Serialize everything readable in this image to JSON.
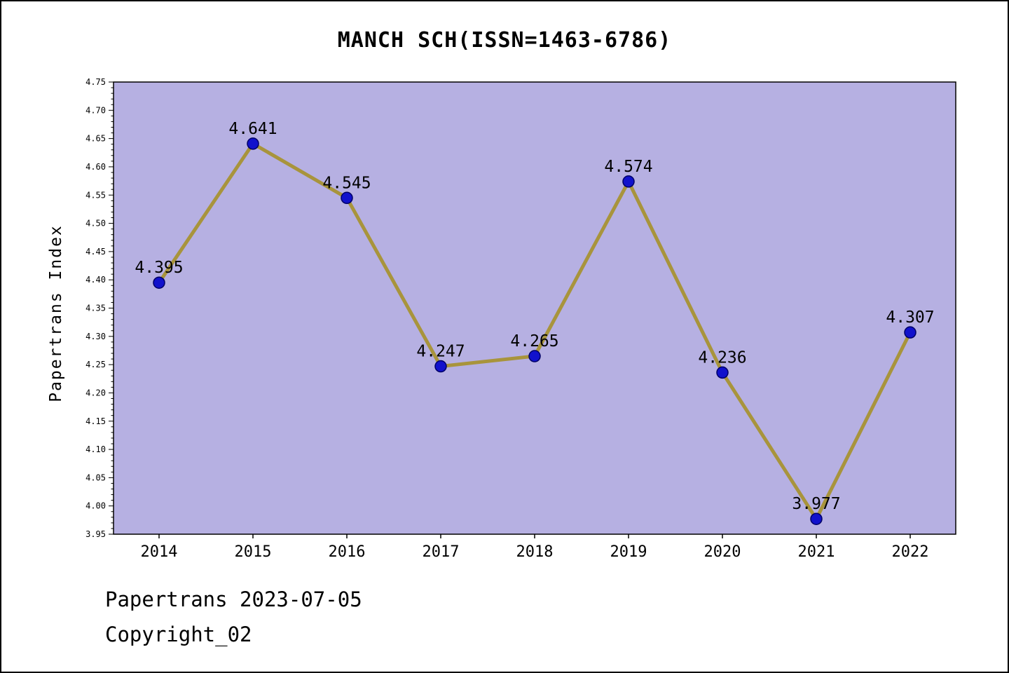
{
  "footer": {
    "line1": "Papertrans 2023-07-05",
    "line2": "Copyright_02"
  },
  "colors": {
    "plot_bg": "#b6b0e2",
    "line": "#a8943c",
    "marker_fill": "#1111cc",
    "marker_edge": "#000066",
    "axis": "#000000"
  },
  "chart_data": {
    "type": "line",
    "title": "MANCH SCH(ISSN=1463-6786)",
    "ylabel": "Papertrans Index",
    "xlabel": "",
    "categories": [
      "2014",
      "2015",
      "2016",
      "2017",
      "2018",
      "2019",
      "2020",
      "2021",
      "2022"
    ],
    "values": [
      4.395,
      4.641,
      4.545,
      4.247,
      4.265,
      4.574,
      4.236,
      3.977,
      4.307
    ],
    "point_labels": [
      "4.395",
      "4.641",
      "4.545",
      "4.247",
      "4.265",
      "4.574",
      "4.236",
      "3.977",
      "4.307"
    ],
    "ylim": [
      3.95,
      4.75
    ],
    "y_ticks": [
      "3.95",
      "4.00",
      "4.05",
      "4.10",
      "4.15",
      "4.20",
      "4.25",
      "4.30",
      "4.35",
      "4.40",
      "4.45",
      "4.50",
      "4.55",
      "4.60",
      "4.65",
      "4.70",
      "4.75"
    ],
    "grid": false,
    "legend_position": "none"
  }
}
